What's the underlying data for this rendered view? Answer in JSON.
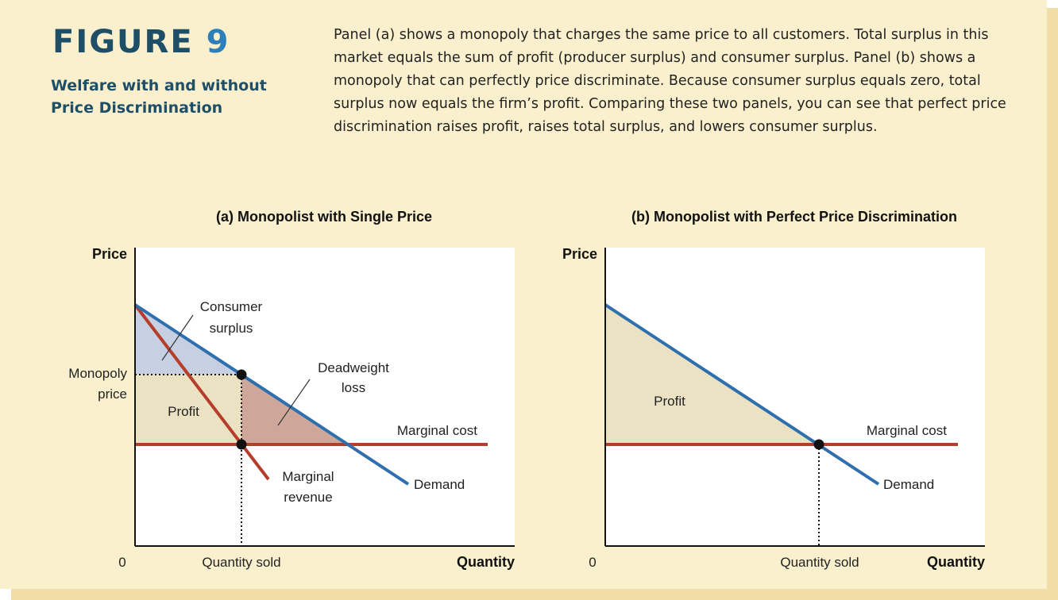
{
  "figure": {
    "label": "FIGURE",
    "number": "9",
    "subtitle": "Welfare with and without Price Discrimination",
    "caption": "Panel (a) shows a monopoly that charges the same price to all customers. Total surplus in this market equals the sum of profit (producer surplus) and consumer surplus. Panel (b) shows a monopoly that can perfectly price discriminate. Because consumer surplus equals zero, total surplus now equals the firm’s profit. Comparing these two panels, you can see that perfect price discrimination raises profit, raises total surplus, and lowers consumer surplus."
  },
  "colors": {
    "demand": "#2e6fae",
    "marginal_cost": "#b53d2b",
    "marginal_revenue": "#b53d2b",
    "consumer_surplus_fill": "#c6d0e2",
    "profit_fill": "#ebe2c4",
    "deadweight_fill": "#cfa79a",
    "background": "#faf0cd"
  },
  "panel_a": {
    "title": "(a) Monopolist with Single Price",
    "y_axis_label": "Price",
    "x_axis_label": "Quantity",
    "origin_label": "0",
    "monopoly_price_line1": "Monopoly",
    "monopoly_price_line2": "price",
    "quantity_sold_label": "Quantity sold",
    "consumer_surplus_line1": "Consumer",
    "consumer_surplus_line2": "surplus",
    "deadweight_line1": "Deadweight",
    "deadweight_line2": "loss",
    "profit_label": "Profit",
    "marginal_cost_label": "Marginal cost",
    "marginal_revenue_line1": "Marginal",
    "marginal_revenue_line2": "revenue",
    "demand_label": "Demand"
  },
  "panel_b": {
    "title": "(b) Monopolist with Perfect Price Discrimination",
    "y_axis_label": "Price",
    "x_axis_label": "Quantity",
    "origin_label": "0",
    "quantity_sold_label": "Quantity sold",
    "profit_label": "Profit",
    "marginal_cost_label": "Marginal cost",
    "demand_label": "Demand"
  }
}
